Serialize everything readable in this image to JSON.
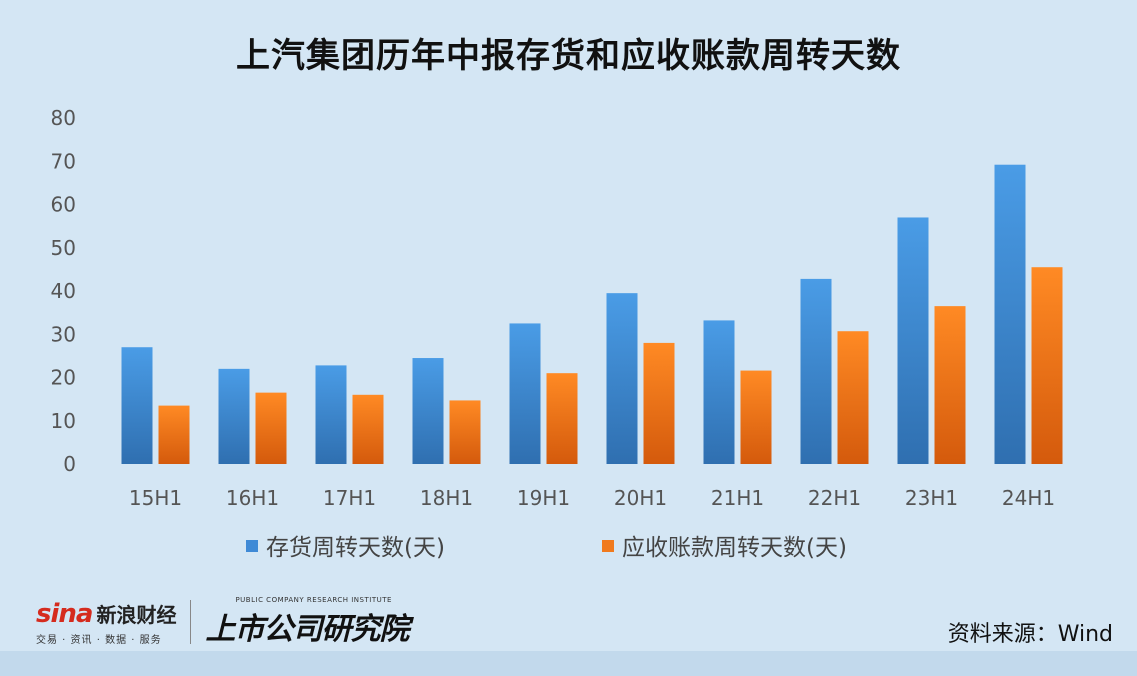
{
  "title": "上汽集团历年中报存货和应收账款周转天数",
  "source": "资料来源：Wind",
  "logo": {
    "sina_word": "sina",
    "sina_cn": "新浪财经",
    "sina_sub": "交易 · 资讯 · 数据 · 服务",
    "institute_en": "PUBLIC COMPANY RESEARCH INSTITUTE",
    "institute_cn": "上市公司研究院"
  },
  "colors": {
    "series_inventory": "#3f8ad6",
    "series_receivable": "#f07a1e",
    "background": "#d4e6f4"
  },
  "chart_data": {
    "type": "bar",
    "categories": [
      "15H1",
      "16H1",
      "17H1",
      "18H1",
      "19H1",
      "20H1",
      "21H1",
      "22H1",
      "23H1",
      "24H1"
    ],
    "series": [
      {
        "name": "存货周转天数(天)",
        "values": [
          27,
          22,
          22.8,
          24.5,
          32.5,
          39.5,
          33.2,
          42.8,
          57,
          69.2
        ]
      },
      {
        "name": "应收账款周转天数(天)",
        "values": [
          13.5,
          16.5,
          16,
          14.7,
          21,
          28,
          21.6,
          30.7,
          36.5,
          45.5
        ]
      }
    ],
    "ylim": [
      0,
      80
    ],
    "yticks": [
      0,
      10,
      20,
      30,
      40,
      50,
      60,
      70,
      80
    ],
    "grid": false,
    "legend_position": "bottom"
  }
}
